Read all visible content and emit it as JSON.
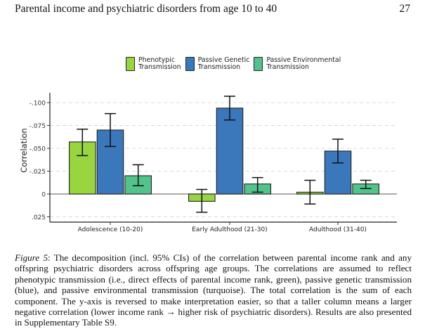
{
  "header": {
    "title": "Parental income and psychiatric disorders from age 10 to 40",
    "page_number": "27"
  },
  "legend": [
    {
      "line1": "Phenotypic",
      "line2": "Transmission",
      "color": "#99D541"
    },
    {
      "line1": "Passive Genetic",
      "line2": "Transmission",
      "color": "#3A77BB"
    },
    {
      "line1": "Passive Environmental",
      "line2": "Transmission",
      "color": "#52C48B"
    }
  ],
  "chart_data": {
    "type": "bar",
    "title": "",
    "xlabel": "",
    "ylabel": "Correlation",
    "y_reversed": true,
    "ylim": [
      -0.11,
      0.03
    ],
    "yticks": [
      -0.1,
      -0.075,
      -0.05,
      -0.025,
      0,
      0.025
    ],
    "ytick_labels": [
      "-.100",
      "-.075",
      "-.050",
      "-.025",
      "0",
      ".025"
    ],
    "grid": "horizontal dashed",
    "legend_position": "top",
    "categories": [
      "Adolescence (10-20)",
      "Early Adulthood (21-30)",
      "Adulthood (31-40)"
    ],
    "series": [
      {
        "name": "Phenotypic Transmission",
        "color": "#99D541",
        "values": [
          -0.057,
          0.008,
          -0.002
        ],
        "ci_low": [
          -0.071,
          -0.005,
          -0.015
        ],
        "ci_high": [
          -0.042,
          0.02,
          0.011
        ]
      },
      {
        "name": "Passive Genetic Transmission",
        "color": "#3A77BB",
        "values": [
          -0.07,
          -0.094,
          -0.047
        ],
        "ci_low": [
          -0.088,
          -0.107,
          -0.06
        ],
        "ci_high": [
          -0.052,
          -0.081,
          -0.034
        ]
      },
      {
        "name": "Passive Environmental Transmission",
        "color": "#52C48B",
        "values": [
          -0.02,
          -0.011,
          -0.011
        ],
        "ci_low": [
          -0.032,
          -0.018,
          -0.015
        ],
        "ci_high": [
          -0.009,
          -0.002,
          -0.006
        ]
      }
    ]
  },
  "caption": {
    "label": "Figure 5",
    "text": ": The decomposition (incl. 95% CIs) of the correlation between parental income rank and any offspring psychiatric disorders across offspring age groups. The correlations are assumed to reflect phenotypic transmission (i.e., direct effects of parental income rank, green), passive genetic transmission (blue), and passive environmental transmission (turquoise). The total correlation is the sum of each component. The y-axis is reversed to make interpretation easier, so that a taller column means a larger negative correlation (lower income rank → higher risk of psychiatric disorders). Results are also presented in Supplementary Table S9."
  }
}
